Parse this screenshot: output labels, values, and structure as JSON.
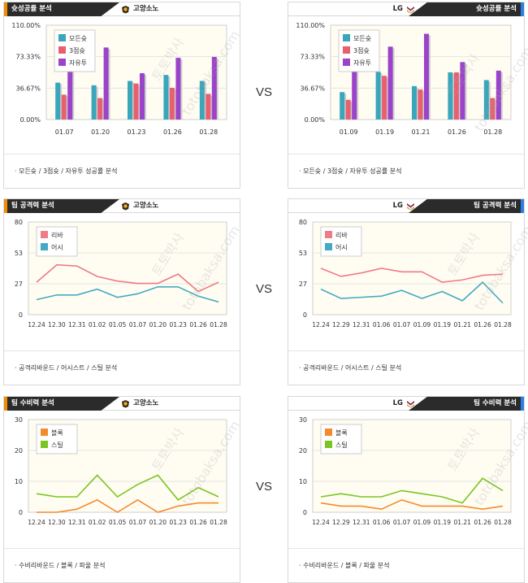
{
  "vs_label": "VS",
  "colors": {
    "plot_bg": "#fffdf2",
    "grid": "#e3e3e3",
    "axis": "#777777"
  },
  "watermark": [
    "토토박사",
    "totobaksa.com"
  ],
  "sections": [
    {
      "title": "슛성공률 분석",
      "footer": "· 모든슛 / 3점슛 / 자유투 성공률 분석",
      "left": {
        "team": "고양소노",
        "chart_data": {
          "type": "bar",
          "categories": [
            "01.07",
            "01.20",
            "01.23",
            "01.26",
            "01.28"
          ],
          "ylim": [
            0,
            110
          ],
          "ytick_labels": [
            "110.00%",
            "73.33%",
            "36.67%",
            "0.00%"
          ],
          "ytick_values": [
            110,
            73.33,
            36.67,
            0
          ],
          "series": [
            {
              "name": "모든슛",
              "color": "#3aa6bc",
              "values": [
                43,
                40,
                45,
                52,
                45
              ]
            },
            {
              "name": "3점슛",
              "color": "#e8606e",
              "values": [
                29,
                25,
                42,
                37,
                30
              ]
            },
            {
              "name": "자유투",
              "color": "#9b43c9",
              "values": [
                60,
                84,
                54,
                72,
                73
              ]
            }
          ]
        }
      },
      "right": {
        "team": "LG",
        "chart_data": {
          "type": "bar",
          "categories": [
            "01.09",
            "01.19",
            "01.21",
            "01.26",
            "01.28"
          ],
          "ylim": [
            0,
            110
          ],
          "ytick_labels": [
            "110.00%",
            "73.33%",
            "36.67%",
            "0.00%"
          ],
          "ytick_values": [
            110,
            73.33,
            36.67,
            0
          ],
          "series": [
            {
              "name": "모든슛",
              "color": "#3aa6bc",
              "values": [
                32,
                56,
                39,
                55,
                46
              ]
            },
            {
              "name": "3점슛",
              "color": "#e8606e",
              "values": [
                23,
                51,
                35,
                55,
                25
              ]
            },
            {
              "name": "자유투",
              "color": "#9b43c9",
              "values": [
                66,
                85,
                100,
                67,
                57
              ]
            }
          ]
        }
      }
    },
    {
      "title": "팀 공격력 분석",
      "footer": "· 공격리바운드 / 어시스트 / 스틸 분석",
      "left": {
        "team": "고양소노",
        "chart_data": {
          "type": "line",
          "categories": [
            "12.24",
            "12.30",
            "12.31",
            "01.02",
            "01.05",
            "01.07",
            "01.20",
            "01.23",
            "01.26",
            "01.28"
          ],
          "ylim": [
            0,
            80
          ],
          "ytick_labels": [
            "80",
            "53",
            "27",
            "0"
          ],
          "ytick_values": [
            80,
            53.33,
            26.67,
            0
          ],
          "series": [
            {
              "name": "리바",
              "color": "#f07a85",
              "values": [
                28,
                43,
                42,
                33,
                29,
                27,
                27,
                35,
                20,
                28
              ]
            },
            {
              "name": "어시",
              "color": "#45a9c2",
              "values": [
                13,
                17,
                17,
                22,
                15,
                18,
                24,
                24,
                16,
                11
              ]
            }
          ]
        }
      },
      "right": {
        "team": "LG",
        "chart_data": {
          "type": "line",
          "categories": [
            "12.24",
            "12.29",
            "12.31",
            "01.06",
            "01.07",
            "01.09",
            "01.19",
            "01.21",
            "01.26",
            "01.28"
          ],
          "ylim": [
            0,
            80
          ],
          "ytick_labels": [
            "80",
            "53",
            "27",
            "0"
          ],
          "ytick_values": [
            80,
            53.33,
            26.67,
            0
          ],
          "series": [
            {
              "name": "리바",
              "color": "#f07a85",
              "values": [
                40,
                33,
                36,
                40,
                37,
                37,
                28,
                30,
                34,
                35
              ]
            },
            {
              "name": "어시",
              "color": "#45a9c2",
              "values": [
                22,
                14,
                15,
                16,
                21,
                14,
                20,
                12,
                28,
                10
              ]
            }
          ]
        }
      }
    },
    {
      "title": "팀 수비력 분석",
      "footer": "· 수비리바운드 / 블록 / 파울 분석",
      "left": {
        "team": "고양소노",
        "chart_data": {
          "type": "line",
          "categories": [
            "12.24",
            "12.30",
            "12.31",
            "01.02",
            "01.05",
            "01.07",
            "01.20",
            "01.23",
            "01.26",
            "01.28"
          ],
          "ylim": [
            0,
            30
          ],
          "ytick_labels": [
            "30",
            "20",
            "10",
            "0"
          ],
          "ytick_values": [
            30,
            20,
            10,
            0
          ],
          "series": [
            {
              "name": "블록",
              "color": "#f58a2c",
              "values": [
                0,
                0,
                1,
                4,
                0,
                4,
                0,
                2,
                3,
                3
              ]
            },
            {
              "name": "스틸",
              "color": "#7ac51f",
              "values": [
                6,
                5,
                5,
                12,
                5,
                9,
                12,
                4,
                8,
                5
              ]
            }
          ]
        }
      },
      "right": {
        "team": "LG",
        "chart_data": {
          "type": "line",
          "categories": [
            "12.24",
            "12.29",
            "12.31",
            "01.06",
            "01.07",
            "01.09",
            "01.19",
            "01.21",
            "01.26",
            "01.28"
          ],
          "ylim": [
            0,
            30
          ],
          "ytick_labels": [
            "30",
            "20",
            "10",
            "0"
          ],
          "ytick_values": [
            30,
            20,
            10,
            0
          ],
          "series": [
            {
              "name": "블록",
              "color": "#f58a2c",
              "values": [
                3,
                2,
                2,
                1,
                4,
                2,
                2,
                2,
                1,
                2
              ]
            },
            {
              "name": "스틸",
              "color": "#7ac51f",
              "values": [
                5,
                6,
                5,
                5,
                7,
                6,
                5,
                3,
                11,
                7
              ]
            }
          ]
        }
      }
    }
  ]
}
